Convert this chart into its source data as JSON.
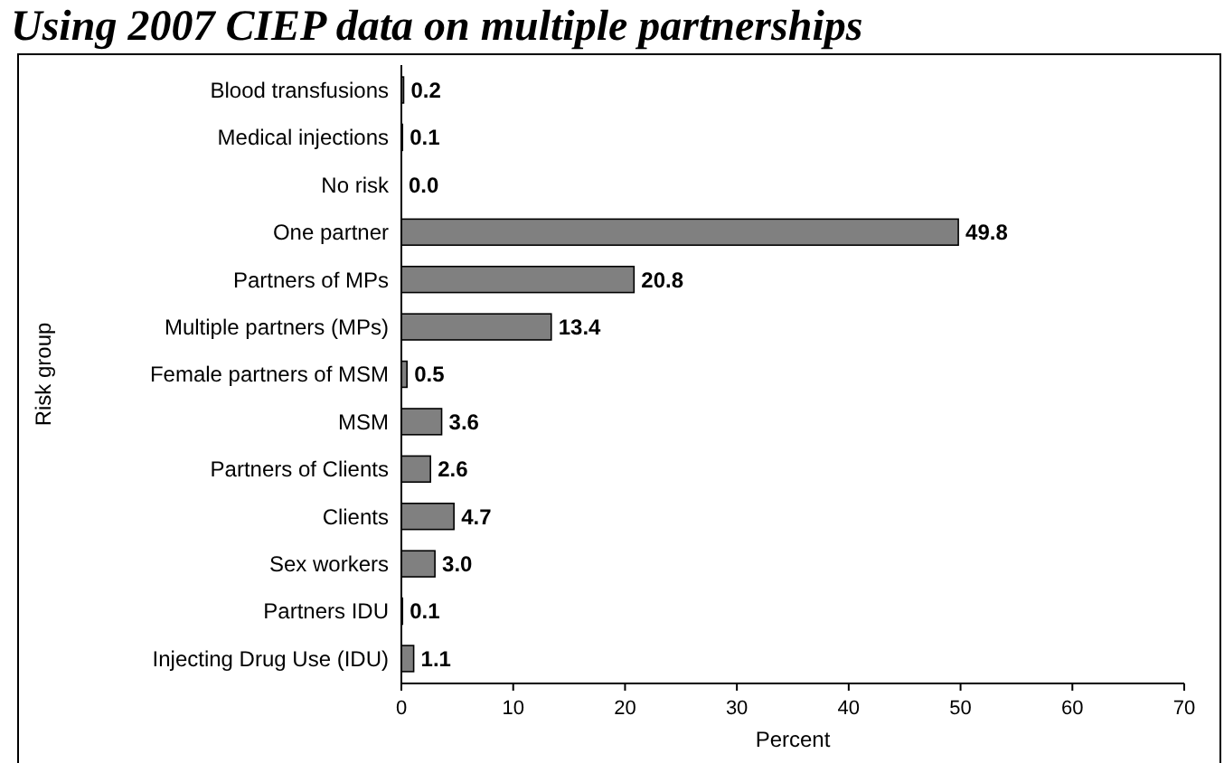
{
  "chart_data": {
    "type": "bar",
    "orientation": "horizontal",
    "title": "Using 2007 CIEP data on multiple partnerships",
    "xlabel": "Percent",
    "ylabel": "Risk group",
    "categories": [
      "Blood transfusions",
      "Medical injections",
      "No risk",
      "One partner",
      "Partners of MPs",
      "Multiple partners (MPs)",
      "Female partners of MSM",
      "MSM",
      "Partners of Clients",
      "Clients",
      "Sex workers",
      "Partners IDU",
      "Injecting Drug Use (IDU)"
    ],
    "values": [
      0.2,
      0.1,
      0.0,
      49.8,
      20.8,
      13.4,
      0.5,
      3.6,
      2.6,
      4.7,
      3.0,
      0.1,
      1.1
    ],
    "value_labels": [
      "0.2",
      "0.1",
      "0.0",
      "49.8",
      "20.8",
      "13.4",
      "0.5",
      "3.6",
      "2.6",
      "4.7",
      "3.0",
      "0.1",
      "1.1"
    ],
    "color": "#808080",
    "xlim": [
      0,
      70
    ],
    "xticks": [
      0,
      10,
      20,
      30,
      40,
      50,
      60,
      70
    ],
    "grid": false
  }
}
